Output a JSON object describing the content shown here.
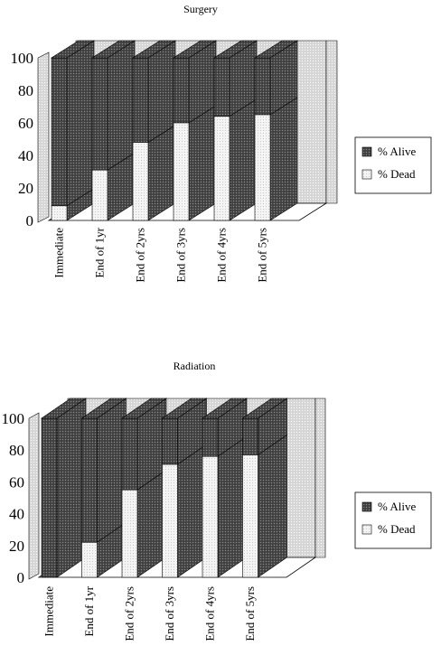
{
  "colors": {
    "alive": "#4a4a4a",
    "dead": "#ececec",
    "outline": "#000000",
    "wall": "#d8d8d8"
  },
  "chart_data": [
    {
      "type": "bar",
      "stacked": true,
      "three_d": true,
      "title": "Surgery",
      "categories": [
        "Immediate",
        "End of 1yr",
        "End of 2yrs",
        "End of 3yrs",
        "End of 4yrs",
        "End of 5yrs"
      ],
      "series": [
        {
          "name": "% Alive",
          "values": [
            91,
            69,
            52,
            40,
            36,
            35
          ]
        },
        {
          "name": "% Dead",
          "values": [
            9,
            31,
            48,
            60,
            64,
            65
          ]
        }
      ],
      "yticks": [
        "0",
        "20",
        "40",
        "60",
        "80",
        "100"
      ],
      "ylim": [
        0,
        100
      ],
      "legend_position": "right"
    },
    {
      "type": "bar",
      "stacked": true,
      "three_d": true,
      "title": "Radiation",
      "categories": [
        "Immediate",
        "End of 1yr",
        "End of 2yrs",
        "End of 3yrs",
        "End of 4yrs",
        "End of 5yrs"
      ],
      "series": [
        {
          "name": "% Alive",
          "values": [
            100,
            78,
            45,
            29,
            24,
            23
          ]
        },
        {
          "name": "% Dead",
          "values": [
            0,
            22,
            55,
            71,
            76,
            77
          ]
        }
      ],
      "yticks": [
        "0",
        "20",
        "40",
        "60",
        "80",
        "100"
      ],
      "ylim": [
        0,
        100
      ],
      "legend_position": "right"
    }
  ]
}
